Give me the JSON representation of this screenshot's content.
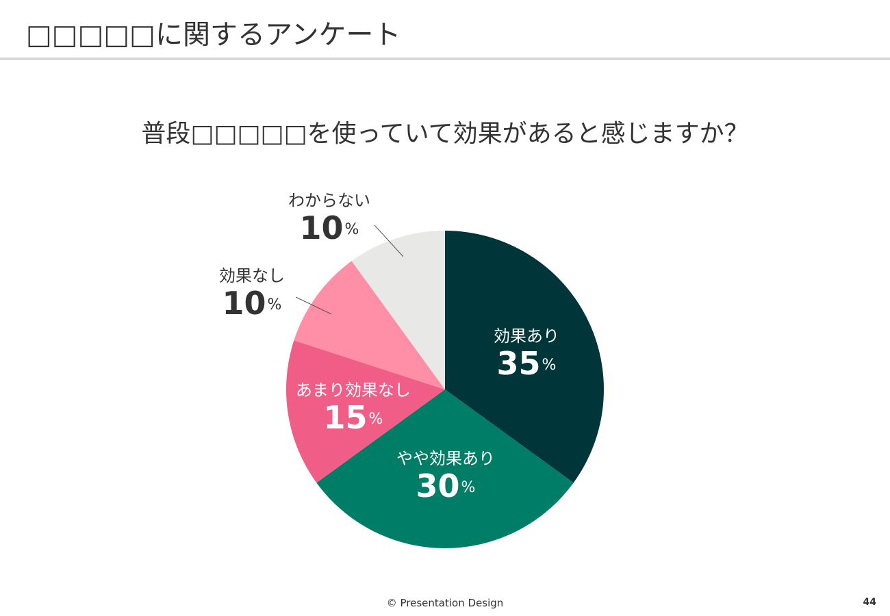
{
  "header": {
    "title": "□□□□□に関するアンケート"
  },
  "question": "普段□□□□□を使っていて効果があると感じますか？",
  "chart_data": {
    "type": "pie",
    "title": "普段□□□□□を使っていて効果があると感じますか？",
    "start": "top, clockwise",
    "unit": "%",
    "slices": [
      {
        "label": "効果あり",
        "value": 35,
        "color": "#003539",
        "text_color": "#ffffff"
      },
      {
        "label": "やや効果あり",
        "value": 30,
        "color": "#007d66",
        "text_color": "#ffffff"
      },
      {
        "label": "あまり効果なし",
        "value": 15,
        "color": "#f05e88",
        "text_color": "#ffffff"
      },
      {
        "label": "効果なし",
        "value": 10,
        "color": "#ff8fa6",
        "text_color": "#333333"
      },
      {
        "label": "わからない",
        "value": 10,
        "color": "#e8e8e6",
        "text_color": "#333333"
      }
    ]
  },
  "footer": {
    "copyright": "© Presentation Design",
    "page_number": "44"
  }
}
